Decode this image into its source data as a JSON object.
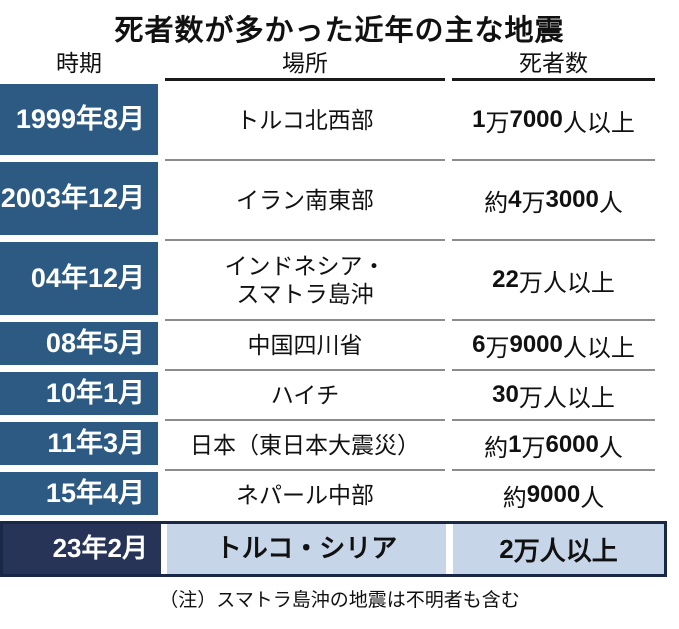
{
  "title": "死者数が多かった近年の主な地震",
  "columns": {
    "period": "時期",
    "place": "場所",
    "deaths": "死者数"
  },
  "table": {
    "rows": [
      {
        "period_lines": [
          "1999年",
          "8月"
        ],
        "place_lines": [
          "トルコ北西部"
        ],
        "deaths": "1万7000人以上",
        "highlight": false
      },
      {
        "period_lines": [
          "2003年",
          "12月"
        ],
        "place_lines": [
          "イラン南東部"
        ],
        "deaths": "約4万3000人",
        "highlight": false
      },
      {
        "period_lines": [
          "04年12月"
        ],
        "place_lines": [
          "インドネシア・",
          "スマトラ島沖"
        ],
        "deaths": "22万人以上",
        "highlight": false
      },
      {
        "period_lines": [
          "08年5月"
        ],
        "place_lines": [
          "中国四川省"
        ],
        "deaths": "6万9000人以上",
        "highlight": false
      },
      {
        "period_lines": [
          "10年1月"
        ],
        "place_lines": [
          "ハイチ"
        ],
        "deaths": "30万人以上",
        "highlight": false
      },
      {
        "period_lines": [
          "11年3月"
        ],
        "place_lines": [
          "日本（東日本大震災）"
        ],
        "deaths": "約1万6000人",
        "highlight": false
      },
      {
        "period_lines": [
          "15年4月"
        ],
        "place_lines": [
          "ネパール中部"
        ],
        "deaths": "約9000人",
        "highlight": false
      },
      {
        "period_lines": [
          "23年2月"
        ],
        "place_lines": [
          "トルコ・シリア"
        ],
        "deaths": "2万人以上",
        "highlight": true
      }
    ]
  },
  "note": "（注）スマトラ島沖の地震は不明者も含む",
  "colors": {
    "page_bg": "#ffffff",
    "text": "#111111",
    "period_bg": "#2d5a83",
    "period_text": "#ffffff",
    "highlight_period_bg": "#273457",
    "highlight_border": "#1a2848",
    "highlight_bg": "#c7d5e9",
    "rule_gray": "#8c8c8c",
    "rule_black": "#1a1a1a"
  },
  "chart_data": {
    "type": "table",
    "title": "死者数が多かった近年の主な地震",
    "columns": [
      "時期",
      "場所",
      "死者数"
    ],
    "rows": [
      [
        "1999年8月",
        "トルコ北西部",
        "1万7000人以上"
      ],
      [
        "2003年12月",
        "イラン南東部",
        "約4万3000人"
      ],
      [
        "04年12月",
        "インドネシア・スマトラ島沖",
        "22万人以上"
      ],
      [
        "08年5月",
        "中国四川省",
        "6万9000人以上"
      ],
      [
        "10年1月",
        "ハイチ",
        "30万人以上"
      ],
      [
        "11年3月",
        "日本（東日本大震災）",
        "約1万6000人"
      ],
      [
        "15年4月",
        "ネパール中部",
        "約9000人"
      ],
      [
        "23年2月",
        "トルコ・シリア",
        "2万人以上"
      ]
    ],
    "deaths_numeric_approx": [
      17000,
      43000,
      220000,
      69000,
      300000,
      16000,
      9000,
      20000
    ],
    "highlighted_row_index": 7,
    "note": "（注）スマトラ島沖の地震は不明者も含む"
  }
}
